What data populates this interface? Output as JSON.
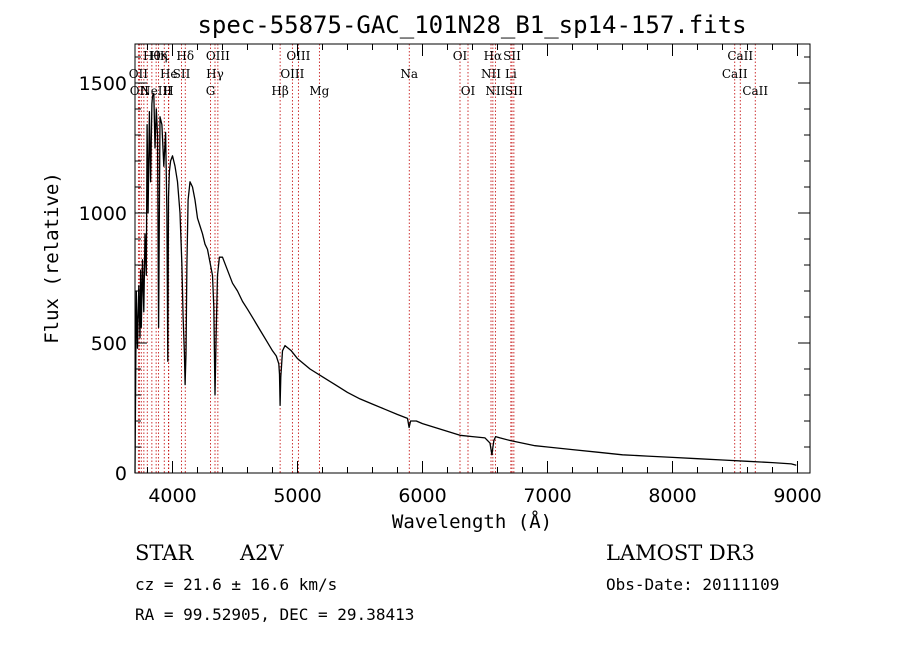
{
  "chart_data": {
    "type": "line",
    "title": "spec-55875-GAC_101N28_B1_sp14-157.fits",
    "xlabel": "Wavelength (Å)",
    "ylabel": "Flux (relative)",
    "xlim": [
      3700,
      9100
    ],
    "ylim": [
      0,
      1650
    ],
    "x_ticks": [
      4000,
      5000,
      6000,
      7000,
      8000,
      9000
    ],
    "y_ticks": [
      0,
      500,
      1000,
      1500
    ],
    "grid": false,
    "series": [
      {
        "name": "flux",
        "x": [
          3700,
          3710,
          3720,
          3730,
          3740,
          3745,
          3750,
          3760,
          3770,
          3780,
          3790,
          3797,
          3805,
          3815,
          3825,
          3835,
          3840,
          3850,
          3860,
          3870,
          3880,
          3889,
          3900,
          3915,
          3930,
          3945,
          3955,
          3962,
          3968,
          3975,
          3985,
          4000,
          4020,
          4040,
          4060,
          4075,
          4085,
          4095,
          4101,
          4108,
          4115,
          4125,
          4140,
          4160,
          4180,
          4200,
          4220,
          4240,
          4260,
          4280,
          4300,
          4320,
          4330,
          4340,
          4350,
          4360,
          4375,
          4400,
          4440,
          4480,
          4520,
          4560,
          4600,
          4650,
          4700,
          4750,
          4800,
          4830,
          4850,
          4856,
          4861,
          4866,
          4872,
          4880,
          4900,
          4950,
          5000,
          5100,
          5200,
          5300,
          5400,
          5500,
          5600,
          5700,
          5800,
          5880,
          5893,
          5905,
          5950,
          6000,
          6100,
          6200,
          6300,
          6400,
          6500,
          6540,
          6555,
          6563,
          6571,
          6585,
          6620,
          6700,
          6800,
          6900,
          7000,
          7200,
          7400,
          7600,
          7800,
          8000,
          8200,
          8400,
          8600,
          8800,
          8950,
          8990
        ],
        "y": [
          0,
          700,
          480,
          720,
          520,
          780,
          560,
          820,
          620,
          920,
          760,
          1340,
          1000,
          1390,
          1120,
          1420,
          1450,
          1460,
          1250,
          1400,
          1300,
          560,
          1370,
          1340,
          1180,
          1310,
          1000,
          430,
          1060,
          1160,
          1200,
          1220,
          1180,
          1120,
          1000,
          800,
          600,
          460,
          340,
          460,
          800,
          1050,
          1120,
          1100,
          1050,
          980,
          950,
          920,
          880,
          860,
          810,
          760,
          640,
          300,
          560,
          760,
          830,
          830,
          780,
          730,
          700,
          660,
          630,
          590,
          550,
          510,
          470,
          450,
          420,
          380,
          260,
          370,
          410,
          470,
          490,
          470,
          440,
          400,
          370,
          340,
          310,
          285,
          265,
          245,
          225,
          210,
          175,
          200,
          200,
          190,
          175,
          160,
          145,
          140,
          135,
          115,
          70,
          100,
          125,
          140,
          135,
          125,
          115,
          105,
          100,
          90,
          80,
          70,
          65,
          60,
          55,
          50,
          45,
          40,
          35,
          30
        ]
      }
    ],
    "lines": [
      {
        "x": 3727,
        "label": "OII",
        "row": 2
      },
      {
        "x": 3735,
        "label": "OII",
        "row": 3
      },
      {
        "x": 3750,
        "label": "",
        "row": 0
      },
      {
        "x": 3771,
        "label": "",
        "row": 0
      },
      {
        "x": 3798,
        "label": "",
        "row": 0
      },
      {
        "x": 3835,
        "label": "Hθ",
        "row": 1
      },
      {
        "x": 3869,
        "label": "NeIII",
        "row": 3
      },
      {
        "x": 3889,
        "label": "Hη",
        "row": 1
      },
      {
        "x": 3934,
        "label": "K",
        "row": 1
      },
      {
        "x": 3970,
        "label": "He",
        "row": 2
      },
      {
        "x": 3968,
        "label": "H",
        "row": 3
      },
      {
        "x": 4072,
        "label": "SII",
        "row": 2
      },
      {
        "x": 4102,
        "label": "Hδ",
        "row": 1
      },
      {
        "x": 4304,
        "label": "G",
        "row": 3
      },
      {
        "x": 4340,
        "label": "Hγ",
        "row": 2
      },
      {
        "x": 4363,
        "label": "OIII",
        "row": 1
      },
      {
        "x": 4861,
        "label": "Hβ",
        "row": 3
      },
      {
        "x": 4959,
        "label": "OIII",
        "row": 2
      },
      {
        "x": 5007,
        "label": "OIII",
        "row": 1
      },
      {
        "x": 5175,
        "label": "Mg",
        "row": 3
      },
      {
        "x": 5894,
        "label": "Na",
        "row": 2
      },
      {
        "x": 6300,
        "label": "OI",
        "row": 1
      },
      {
        "x": 6364,
        "label": "OI",
        "row": 3
      },
      {
        "x": 6548,
        "label": "NII",
        "row": 2
      },
      {
        "x": 6563,
        "label": "Hα",
        "row": 1
      },
      {
        "x": 6583,
        "label": "NII",
        "row": 3
      },
      {
        "x": 6707,
        "label": "Li",
        "row": 2
      },
      {
        "x": 6716,
        "label": "SII",
        "row": 1
      },
      {
        "x": 6731,
        "label": "SII",
        "row": 3
      },
      {
        "x": 8498,
        "label": "CaII",
        "row": 2
      },
      {
        "x": 8542,
        "label": "CaII",
        "row": 1
      },
      {
        "x": 8662,
        "label": "CaII",
        "row": 3
      }
    ]
  },
  "info": {
    "object_class": "STAR",
    "subclass": "A2V",
    "survey": "LAMOST DR3",
    "cz": "cz = 21.6 ± 16.6 km/s",
    "obs_date": "Obs-Date: 20111109",
    "coords": "RA =  99.52905, DEC =  29.38413"
  },
  "colors": {
    "spectrum": "#000000",
    "line_markers": "#c00000",
    "axes": "#000000",
    "background": "#ffffff"
  }
}
